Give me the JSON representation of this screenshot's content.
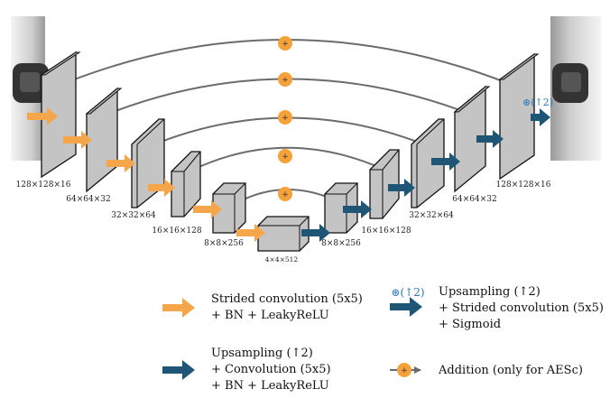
{
  "shape_labels": {
    "enc1": "128×128×16",
    "enc2": "64×64×32",
    "enc3": "32×32×64",
    "enc4": "16×16×128",
    "enc5": "8×8×256",
    "bottleneck": "4×4×512",
    "dec5": "8×8×256",
    "dec4": "16×16×128",
    "dec3": "32×32×64",
    "dec2": "64×64×32",
    "dec1": "128×128×16"
  },
  "final_op_label": "⊛(↑2)",
  "legend": {
    "strided_conv": [
      "Strided convolution (5x5)",
      "+ BN + LeakyReLU"
    ],
    "final_block": {
      "tag": "⊛(↑2)",
      "lines": [
        "Upsampling (↑2)",
        "+ Strided convolution (5x5)",
        "+ Sigmoid"
      ]
    },
    "upsampling_block": [
      "Upsampling (↑2)",
      "+ Convolution (5x5)",
      "+ BN + LeakyReLU"
    ],
    "addition": "Addition (only for AESc)"
  },
  "colors": {
    "encoder_arrow": "#f5a64b",
    "decoder_arrow": "#1f5676",
    "addition_node": "#f5a23a",
    "skip_connection": "#6b6b6b",
    "tensor_fill": "#c4c4c4"
  },
  "icons": {
    "addition_node": "plus-circle-icon"
  }
}
